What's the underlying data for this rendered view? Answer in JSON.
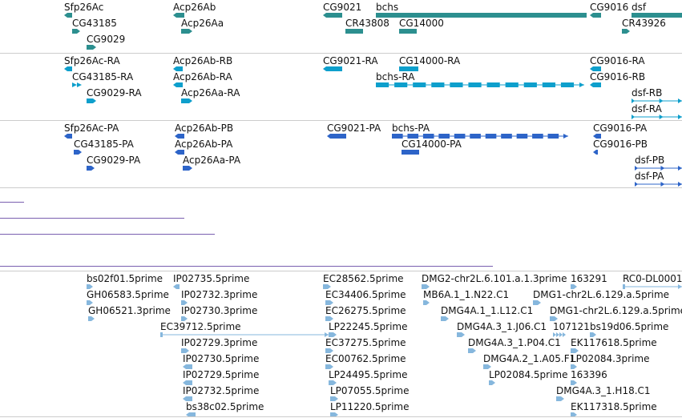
{
  "colors": {
    "gene": "#2c8f8f",
    "mrna": "#0e9fcc",
    "protein": "#2d64c8",
    "repeat": "#7a5fb0",
    "est": "#86b7dd",
    "separator": "#cccccc"
  },
  "tracks": {
    "genes": [
      {
        "label": "Sfp26Ac",
        "shape": "arrow-left"
      },
      {
        "label": "CG43185",
        "shape": "arrow-right"
      },
      {
        "label": "CG9029",
        "shape": "arrow-right"
      },
      {
        "label": "Acp26Ab",
        "shape": "arrow-left"
      },
      {
        "label": "Acp26Aa",
        "shape": "arrow-right"
      },
      {
        "label": "CG9021",
        "shape": "arrow-left"
      },
      {
        "label": "bchs",
        "shape": "bar"
      },
      {
        "label": "CR43808",
        "shape": "bar"
      },
      {
        "label": "CG14000",
        "shape": "bar"
      },
      {
        "label": "CG9016",
        "shape": "arrow-left"
      },
      {
        "label": "dsf",
        "shape": "bar"
      },
      {
        "label": "CR43926",
        "shape": "arrow-right"
      }
    ],
    "transcripts": [
      {
        "label": "Sfp26Ac-RA",
        "shape": "arrow-left"
      },
      {
        "label": "CG43185-RA",
        "shape": "double-right"
      },
      {
        "label": "CG9029-RA",
        "shape": "arrow-right"
      },
      {
        "label": "Acp26Ab-RB",
        "shape": "arrow-left"
      },
      {
        "label": "Acp26Ab-RA",
        "shape": "arrow-left"
      },
      {
        "label": "Acp26Aa-RA",
        "shape": "arrow-right"
      },
      {
        "label": "CG9021-RA",
        "shape": "arrow-left"
      },
      {
        "label": "CG14000-RA",
        "shape": "bar"
      },
      {
        "label": "bchs-RA",
        "shape": "exons"
      },
      {
        "label": "CG9016-RA",
        "shape": "arrow-left"
      },
      {
        "label": "CG9016-RB",
        "shape": "arrow-left"
      },
      {
        "label": "dsf-RB",
        "shape": "intron-right"
      },
      {
        "label": "dsf-RA",
        "shape": "intron-right"
      }
    ],
    "proteins": [
      {
        "label": "Sfp26Ac-PA",
        "shape": "arrow-left"
      },
      {
        "label": "CG43185-PA",
        "shape": "arrow-right"
      },
      {
        "label": "CG9029-PA",
        "shape": "arrow-right"
      },
      {
        "label": "Acp26Ab-PB",
        "shape": "arrow-left"
      },
      {
        "label": "Acp26Ab-PA",
        "shape": "arrow-left"
      },
      {
        "label": "Acp26Aa-PA",
        "shape": "arrow-right"
      },
      {
        "label": "CG9021-PA",
        "shape": "arrow-left"
      },
      {
        "label": "bchs-PA",
        "shape": "exons"
      },
      {
        "label": "CG14000-PA",
        "shape": "bar"
      },
      {
        "label": "CG9016-PA",
        "shape": "arrow-left"
      },
      {
        "label": "CG9016-PB",
        "shape": "arrow-left"
      },
      {
        "label": "dsf-PB",
        "shape": "intron-right"
      },
      {
        "label": "dsf-PA",
        "shape": "intron-right"
      }
    ],
    "ests": [
      {
        "label": "bs02f01.5prime",
        "shape": "arrow-right"
      },
      {
        "label": "GH06583.5prime",
        "shape": "arrow-right"
      },
      {
        "label": "GH06521.3prime",
        "shape": "arrow-right"
      },
      {
        "label": "IP02735.5prime",
        "shape": "arrow-left"
      },
      {
        "label": "IP02732.3prime",
        "shape": "arrow-right"
      },
      {
        "label": "IP02730.3prime",
        "shape": "arrow-right"
      },
      {
        "label": "EC39712.5prime",
        "shape": "line-right"
      },
      {
        "label": "IP02729.3prime",
        "shape": "arrow-right"
      },
      {
        "label": "IP02730.5prime",
        "shape": "arrow-left"
      },
      {
        "label": "IP02729.5prime",
        "shape": "arrow-left"
      },
      {
        "label": "IP02732.5prime",
        "shape": "arrow-left"
      },
      {
        "label": "bs38c02.5prime",
        "shape": "arrow-left"
      },
      {
        "label": "EC28562.5prime",
        "shape": "arrow-right"
      },
      {
        "label": "EC34406.5prime",
        "shape": "arrow-right"
      },
      {
        "label": "EC26275.5prime",
        "shape": "arrow-right"
      },
      {
        "label": "LP22245.5prime",
        "shape": "arrow-right"
      },
      {
        "label": "EC37275.5prime",
        "shape": "arrow-right"
      },
      {
        "label": "EC00762.5prime",
        "shape": "arrow-right"
      },
      {
        "label": "LP24495.5prime",
        "shape": "arrow-right"
      },
      {
        "label": "LP07055.5prime",
        "shape": "arrow-right"
      },
      {
        "label": "LP11220.5prime",
        "shape": "arrow-right"
      },
      {
        "label": "DMG2-chr2L.6.101.a.1.3prime",
        "shape": "arrow-right"
      },
      {
        "label": "MB6A.1_1.N22.C1",
        "shape": "arrow-right"
      },
      {
        "label": "DMG4A.1_1.L12.C1",
        "shape": "arrow-right"
      },
      {
        "label": "DMG4A.3_1.J06.C1",
        "shape": "arrow-right"
      },
      {
        "label": "DMG4A.3_1.P04.C1",
        "shape": "arrow-right"
      },
      {
        "label": "DMG4A.2_1.A05.F1",
        "shape": "arrow-right"
      },
      {
        "label": "LP02084.5prime",
        "shape": "arrow-right"
      },
      {
        "label": "163291",
        "shape": "arrow-right"
      },
      {
        "label": "DMG1-chr2L.6.129.a.5prime",
        "shape": "arrow-right"
      },
      {
        "label": "DMG1-chr2L.6.129.a.5prime",
        "shape": "arrow-right"
      },
      {
        "label": "107121",
        "shape": "multi"
      },
      {
        "label": "bs19d06.5prime",
        "shape": "arrow-right"
      },
      {
        "label": "EK117618.5prime",
        "shape": "arrow-right"
      },
      {
        "label": "LP02084.3prime",
        "shape": "arrow-right"
      },
      {
        "label": "163396",
        "shape": "arrow-right"
      },
      {
        "label": "DMG4A.3_1.H18.C1",
        "shape": "arrow-right"
      },
      {
        "label": "EK117318.5prime",
        "shape": "arrow-right"
      },
      {
        "label": "RC0-DL0001",
        "shape": "line-right"
      }
    ]
  }
}
